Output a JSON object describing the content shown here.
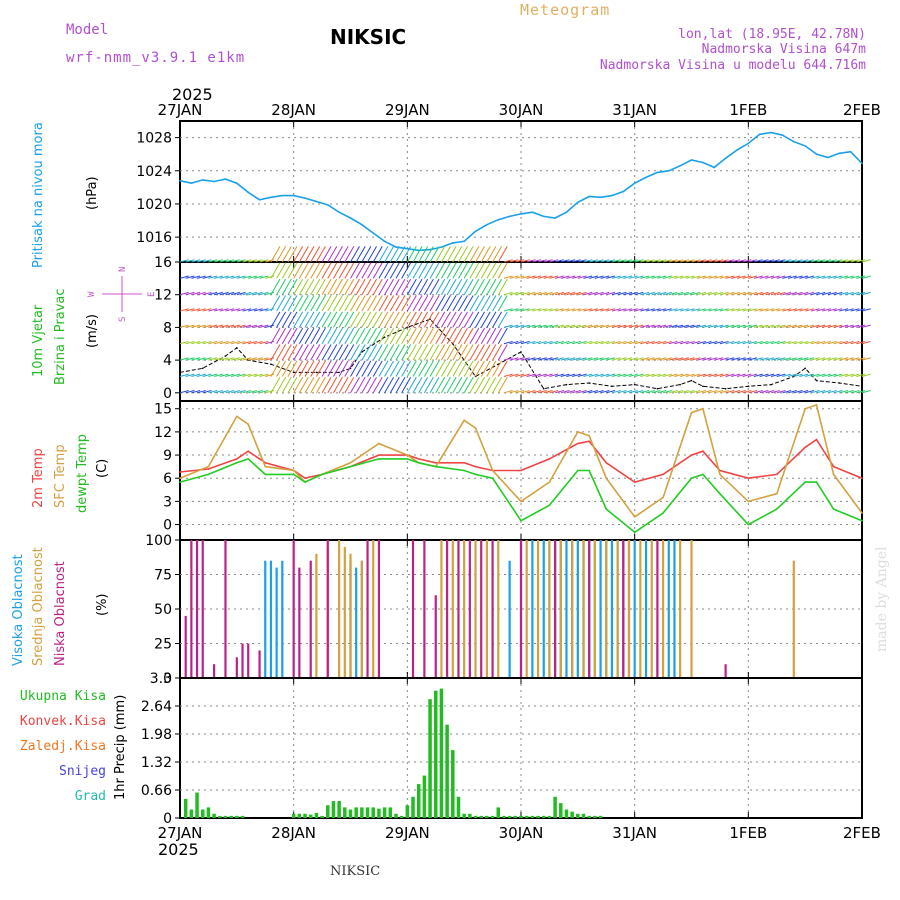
{
  "header": {
    "model_label": "Model",
    "model_name": "wrf-nmm_v3.9.1  e1km",
    "station": "NIKSIC",
    "product": "Meteogram",
    "coords": "lon,lat (18.95E, 42.78N)",
    "elevation": "Nadmorska Visina 647m",
    "model_elevation": "Nadmorska Visina u modelu 644.716m",
    "year_top": "2025",
    "year_bottom": "2025",
    "footer_station": "NIKSIC",
    "credit": "made by Angel"
  },
  "colors": {
    "pressure": "#1aa0e8",
    "wind_title": "#22bb22",
    "wind_sub": "#22bb22",
    "compass": "#cc55cc",
    "temp2m": "#ee4444",
    "sfc": "#d4a040",
    "dewpt": "#22cc22",
    "cloud_high": "#1aa0e8",
    "cloud_mid": "#d4a040",
    "cloud_low": "#bb2288",
    "precip": "#22bb22",
    "convective": "#ee4444",
    "freezing": "#ee7722",
    "snow": "#4444dd",
    "hail": "#22bbaa",
    "header_purple": "#b050d0",
    "header_gold": "#e0b060"
  },
  "chart_data": [
    {
      "type": "line",
      "title": "Pritisak na nivou mora",
      "ylabel": "(hPa)",
      "x_ticks": [
        "27JAN",
        "28JAN",
        "29JAN",
        "30JAN",
        "31JAN",
        "1FEB",
        "2FEB"
      ],
      "ylim": [
        1013,
        1030
      ],
      "yticks": [
        1016,
        1020,
        1024,
        1028
      ],
      "grid": true,
      "series": [
        {
          "name": "Pritisak na nivou mora",
          "x": [
            0,
            0.1,
            0.2,
            0.3,
            0.4,
            0.5,
            0.6,
            0.7,
            0.8,
            0.9,
            1.0,
            1.1,
            1.2,
            1.3,
            1.4,
            1.5,
            1.6,
            1.7,
            1.8,
            1.9,
            2.0,
            2.1,
            2.2,
            2.3,
            2.4,
            2.5,
            2.6,
            2.7,
            2.8,
            2.9,
            3.0,
            3.1,
            3.2,
            3.3,
            3.4,
            3.5,
            3.6,
            3.7,
            3.8,
            3.9,
            4.0,
            4.1,
            4.2,
            4.3,
            4.4,
            4.5,
            4.6,
            4.7,
            4.8,
            4.9,
            5.0,
            5.1,
            5.2,
            5.3,
            5.4,
            5.5,
            5.6,
            5.7,
            5.8,
            5.9,
            6.0
          ],
          "values": [
            1022.8,
            1022.5,
            1022.9,
            1022.7,
            1023.0,
            1022.5,
            1021.4,
            1020.5,
            1020.8,
            1021.0,
            1021.0,
            1020.7,
            1020.3,
            1019.9,
            1019.0,
            1018.3,
            1017.5,
            1016.5,
            1015.5,
            1014.8,
            1014.6,
            1014.4,
            1014.5,
            1014.8,
            1015.3,
            1015.5,
            1016.7,
            1017.5,
            1018.1,
            1018.5,
            1018.8,
            1019.0,
            1018.5,
            1018.3,
            1019.0,
            1020.2,
            1020.9,
            1020.8,
            1021.0,
            1021.5,
            1022.5,
            1023.2,
            1023.8,
            1024.0,
            1024.6,
            1025.3,
            1025.0,
            1024.4,
            1025.5,
            1026.5,
            1027.3,
            1028.4,
            1028.6,
            1028.3,
            1027.5,
            1027.0,
            1026.0,
            1025.6,
            1026.1,
            1026.3,
            1024.9
          ]
        }
      ]
    },
    {
      "type": "line",
      "title": "10m Vjetar Brzina i Pravac",
      "ylabel": "(m/s)",
      "ylim": [
        -1,
        16
      ],
      "yticks": [
        0,
        4,
        8,
        12,
        16
      ],
      "grid": true,
      "series": [
        {
          "name": "10m Vjetar",
          "x": [
            0,
            0.2,
            0.4,
            0.5,
            0.6,
            0.8,
            1.0,
            1.2,
            1.4,
            1.5,
            1.6,
            1.8,
            2.0,
            2.2,
            2.4,
            2.6,
            2.8,
            3.0,
            3.2,
            3.4,
            3.6,
            3.8,
            4.0,
            4.2,
            4.4,
            4.5,
            4.6,
            4.8,
            5.0,
            5.2,
            5.4,
            5.5,
            5.6,
            5.8,
            6.0
          ],
          "values": [
            2.5,
            3.0,
            4.5,
            5.5,
            4.0,
            3.5,
            2.5,
            2.5,
            2.5,
            3.0,
            5.0,
            6.8,
            8.0,
            9.0,
            6.0,
            2.0,
            3.5,
            5.0,
            0.5,
            1.0,
            1.2,
            0.8,
            1.0,
            0.5,
            1.0,
            1.5,
            0.8,
            0.5,
            0.8,
            1.0,
            2.0,
            3.0,
            1.5,
            1.2,
            0.8
          ]
        }
      ]
    },
    {
      "type": "line",
      "ylabel": "(C)",
      "ylim": [
        -2,
        16
      ],
      "yticks": [
        0,
        3,
        6,
        9,
        12,
        15
      ],
      "grid": true,
      "series": [
        {
          "name": "2m Temp",
          "x": [
            0,
            0.25,
            0.5,
            0.6,
            0.75,
            1.0,
            1.1,
            1.25,
            1.5,
            1.75,
            2.0,
            2.1,
            2.25,
            2.5,
            2.6,
            2.75,
            3.0,
            3.25,
            3.5,
            3.6,
            3.75,
            4.0,
            4.25,
            4.5,
            4.6,
            4.75,
            5.0,
            5.25,
            5.5,
            5.6,
            5.75,
            6.0
          ],
          "values": [
            6.8,
            7.2,
            8.5,
            9.5,
            8.0,
            7.0,
            6.0,
            6.5,
            7.5,
            9.0,
            9.0,
            8.5,
            8.0,
            8.0,
            7.5,
            7.0,
            7.0,
            8.5,
            10.5,
            10.8,
            8.0,
            5.5,
            6.5,
            9.0,
            9.5,
            7.0,
            6.0,
            6.5,
            10.0,
            11.0,
            7.5,
            6.0
          ]
        },
        {
          "name": "SFC Temp",
          "x": [
            0,
            0.25,
            0.5,
            0.6,
            0.75,
            1.0,
            1.1,
            1.25,
            1.5,
            1.75,
            2.0,
            2.1,
            2.25,
            2.5,
            2.6,
            2.75,
            3.0,
            3.25,
            3.5,
            3.6,
            3.75,
            4.0,
            4.25,
            4.5,
            4.6,
            4.75,
            5.0,
            5.25,
            5.5,
            5.6,
            5.75,
            6.0
          ],
          "values": [
            6.0,
            7.5,
            14.0,
            13.0,
            7.5,
            7.0,
            5.5,
            6.5,
            8.0,
            10.5,
            9.0,
            8.0,
            7.5,
            13.5,
            12.5,
            7.0,
            3.0,
            5.5,
            12.0,
            11.5,
            6.0,
            1.0,
            3.5,
            14.5,
            15.0,
            6.5,
            3.0,
            4.0,
            15.0,
            15.5,
            6.5,
            1.5
          ]
        },
        {
          "name": "dewpt Temp",
          "x": [
            0,
            0.25,
            0.5,
            0.6,
            0.75,
            1.0,
            1.1,
            1.25,
            1.5,
            1.75,
            2.0,
            2.1,
            2.25,
            2.5,
            2.6,
            2.75,
            3.0,
            3.25,
            3.5,
            3.6,
            3.75,
            4.0,
            4.25,
            4.5,
            4.6,
            4.75,
            5.0,
            5.25,
            5.5,
            5.6,
            5.75,
            6.0
          ],
          "values": [
            5.5,
            6.5,
            8.0,
            8.5,
            6.5,
            6.5,
            5.5,
            6.5,
            7.5,
            8.5,
            8.5,
            8.0,
            7.5,
            7.0,
            6.5,
            6.0,
            0.5,
            2.5,
            7.0,
            7.0,
            2.0,
            -1.0,
            1.5,
            6.0,
            6.5,
            4.0,
            0.0,
            2.0,
            5.5,
            5.5,
            2.0,
            0.5
          ]
        }
      ]
    },
    {
      "type": "bar",
      "ylabel": "(%)",
      "ylim": [
        0,
        100
      ],
      "yticks": [
        0,
        25,
        50,
        75,
        100
      ],
      "grid": true,
      "series": [
        {
          "name": "Visoka Oblacnost",
          "x": [
            0.75,
            0.8,
            0.85,
            0.9,
            1.5,
            1.55,
            1.6,
            2.9,
            3.0,
            3.1,
            3.2,
            3.25,
            3.3,
            3.35,
            3.4,
            3.45,
            3.5,
            3.55,
            3.6,
            3.65,
            3.7,
            3.75,
            3.8,
            3.85,
            3.9,
            3.95,
            4.0,
            4.1,
            4.2,
            4.3,
            4.35
          ],
          "values": [
            85,
            85,
            80,
            85,
            85,
            80,
            85,
            85,
            100,
            100,
            100,
            100,
            100,
            100,
            100,
            100,
            100,
            100,
            100,
            100,
            100,
            100,
            100,
            100,
            100,
            100,
            100,
            100,
            25,
            100,
            100
          ]
        },
        {
          "name": "Srednja Oblacnost",
          "x": [
            1.2,
            1.3,
            1.4,
            1.45,
            1.5,
            1.6,
            1.7,
            2.3,
            2.4,
            2.5,
            2.6,
            2.7,
            2.8,
            3.05,
            3.15,
            3.25,
            3.35,
            3.45,
            3.55,
            3.65,
            3.75,
            3.85,
            3.95,
            4.05,
            4.15,
            4.25,
            4.4,
            4.5,
            5.4
          ],
          "values": [
            90,
            95,
            100,
            95,
            90,
            85,
            100,
            100,
            100,
            100,
            100,
            100,
            100,
            100,
            100,
            100,
            100,
            100,
            100,
            100,
            100,
            100,
            100,
            100,
            100,
            100,
            100,
            100,
            85
          ]
        },
        {
          "name": "Niska Oblacnost",
          "x": [
            0.05,
            0.1,
            0.15,
            0.2,
            0.3,
            0.4,
            0.5,
            0.55,
            0.6,
            0.7,
            1.0,
            1.05,
            1.15,
            1.3,
            1.65,
            1.75,
            2.05,
            2.15,
            2.25,
            2.35,
            2.45,
            2.55,
            2.65,
            2.75,
            3.0,
            3.3,
            3.6,
            3.9,
            4.2,
            4.8
          ],
          "values": [
            45,
            100,
            100,
            100,
            10,
            100,
            15,
            25,
            25,
            20,
            100,
            80,
            85,
            100,
            100,
            100,
            100,
            100,
            60,
            100,
            100,
            100,
            100,
            100,
            100,
            100,
            100,
            100,
            100,
            10
          ]
        }
      ]
    },
    {
      "type": "bar",
      "ylabel": "1hr Precip (mm)",
      "ylim": [
        0,
        3.3
      ],
      "yticks": [
        0,
        0.66,
        1.32,
        1.98,
        2.64,
        3.3
      ],
      "x_ticks": [
        "27JAN",
        "28JAN",
        "29JAN",
        "30JAN",
        "31JAN",
        "1FEB",
        "2FEB"
      ],
      "grid": true,
      "series": [
        {
          "name": "Ukupna Kisa",
          "x": [
            0.05,
            0.1,
            0.15,
            0.2,
            0.25,
            0.3,
            0.35,
            0.4,
            0.45,
            0.5,
            0.55,
            1.0,
            1.05,
            1.1,
            1.15,
            1.2,
            1.25,
            1.3,
            1.35,
            1.4,
            1.45,
            1.5,
            1.55,
            1.6,
            1.65,
            1.7,
            1.75,
            1.8,
            1.85,
            1.9,
            1.95,
            2.0,
            2.05,
            2.1,
            2.15,
            2.2,
            2.25,
            2.3,
            2.35,
            2.4,
            2.45,
            2.5,
            2.55,
            2.6,
            2.65,
            2.7,
            2.75,
            2.8,
            2.85,
            2.9,
            2.95,
            3.0,
            3.05,
            3.1,
            3.15,
            3.2,
            3.25,
            3.3,
            3.35,
            3.4,
            3.45,
            3.5,
            3.55,
            3.6,
            3.65,
            3.7
          ],
          "values": [
            0.45,
            0.2,
            0.6,
            0.2,
            0.25,
            0.1,
            0.05,
            0.05,
            0.05,
            0.05,
            0.05,
            0.1,
            0.1,
            0.1,
            0.08,
            0.12,
            0.05,
            0.3,
            0.4,
            0.4,
            0.25,
            0.2,
            0.25,
            0.25,
            0.25,
            0.25,
            0.22,
            0.25,
            0.25,
            0.1,
            0.05,
            0.3,
            0.5,
            0.8,
            1.0,
            2.8,
            3.0,
            3.05,
            2.2,
            1.6,
            0.5,
            0.1,
            0.1,
            0.05,
            0.05,
            0.05,
            0.05,
            0.25,
            0.05,
            0.05,
            0.05,
            0.05,
            0.05,
            0.05,
            0.05,
            0.05,
            0.05,
            0.5,
            0.35,
            0.2,
            0.15,
            0.1,
            0.1,
            0.05,
            0.05,
            0.05
          ]
        }
      ]
    }
  ],
  "legend": {
    "pressure_title": "Pritisak na nivou mora",
    "pressure_unit": "(hPa)",
    "wind_line1": "10m Vjetar",
    "wind_line2": "Brzina i Pravac",
    "wind_unit": "(m/s)",
    "temp_2m": "2m Temp",
    "temp_sfc": "SFC Temp",
    "temp_dewpt": "dewpt Temp",
    "temp_unit": "(C)",
    "cloud_high": "Visoka Oblacnost",
    "cloud_mid": "Srednja Oblacnost",
    "cloud_low": "Niska Oblacnost",
    "cloud_unit": "(%)",
    "precip_total": "Ukupna Kisa",
    "precip_conv": "Konvek.Kisa",
    "precip_frz": "Zaledj.Kisa",
    "precip_snow": "Snijeg",
    "precip_hail": "Grad",
    "precip_unit": "1hr Precip (mm)",
    "compass_n": "N",
    "compass_s": "S",
    "compass_w": "W",
    "compass_e": "E"
  }
}
